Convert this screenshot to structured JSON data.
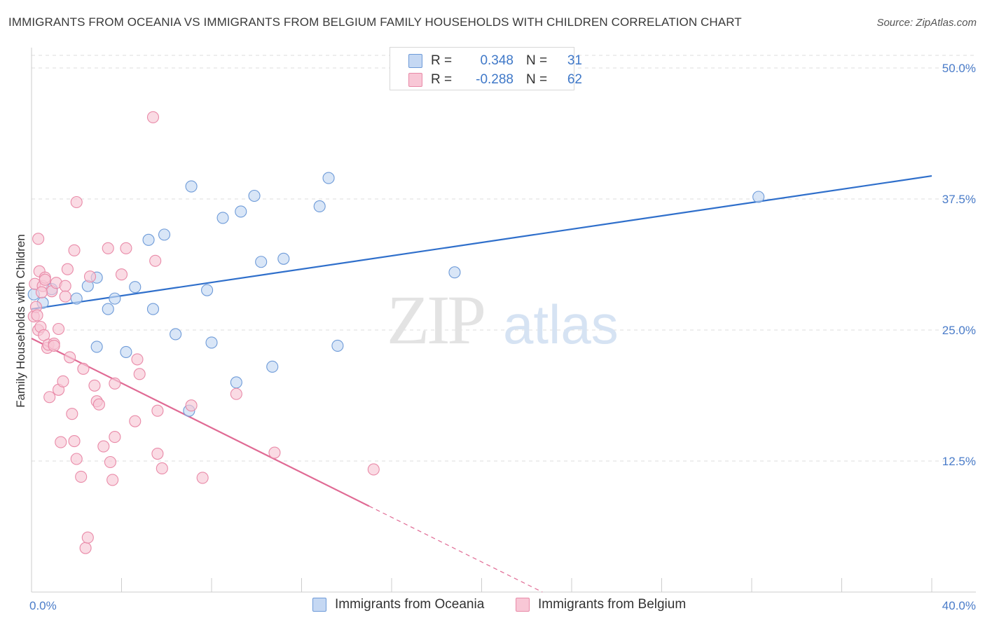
{
  "header": {
    "title": "IMMIGRANTS FROM OCEANIA VS IMMIGRANTS FROM BELGIUM FAMILY HOUSEHOLDS WITH CHILDREN CORRELATION CHART",
    "source": "Source: ZipAtlas.com"
  },
  "watermark": {
    "zip": "ZIP",
    "atlas": "atlas"
  },
  "colors": {
    "oceania_fill": "#c5d8f3",
    "oceania_stroke": "#6d9ad8",
    "oceania_line": "#2f6fcb",
    "belgium_fill": "#f8c7d6",
    "belgium_stroke": "#e98aa8",
    "belgium_line": "#e06a94",
    "tick_text": "#4a7cc9",
    "grid": "#dedede"
  },
  "legend": {
    "rows": [
      {
        "r_label": "R =",
        "r_value": "0.348",
        "n_label": "N =",
        "n_value": "31"
      },
      {
        "r_label": "R =",
        "r_value": "-0.288",
        "n_label": "N =",
        "n_value": "62"
      }
    ]
  },
  "chart_data": {
    "type": "scatter",
    "title": "IMMIGRANTS FROM OCEANIA VS IMMIGRANTS FROM BELGIUM FAMILY HOUSEHOLDS WITH CHILDREN CORRELATION CHART",
    "xlabel": "",
    "ylabel": "Family Households with Children",
    "xlim": [
      0,
      40
    ],
    "ylim": [
      0,
      50
    ],
    "x_tick_labels": [
      {
        "value": 0,
        "label": "0.0%"
      },
      {
        "value": 40,
        "label": "40.0%"
      }
    ],
    "y_tick_labels": [
      {
        "value": 12.5,
        "label": "12.5%"
      },
      {
        "value": 25,
        "label": "25.0%"
      },
      {
        "value": 37.5,
        "label": "37.5%"
      },
      {
        "value": 50,
        "label": "50.0%"
      }
    ],
    "grid": true,
    "series": [
      {
        "name": "Immigrants from Oceania",
        "points": [
          [
            0.1,
            28.4
          ],
          [
            0.5,
            27.6
          ],
          [
            0.9,
            28.9
          ],
          [
            2.0,
            28.0
          ],
          [
            2.5,
            29.2
          ],
          [
            2.9,
            30.0
          ],
          [
            2.9,
            23.4
          ],
          [
            3.4,
            27.0
          ],
          [
            3.7,
            28.0
          ],
          [
            4.2,
            22.9
          ],
          [
            4.6,
            29.1
          ],
          [
            5.2,
            33.6
          ],
          [
            5.4,
            27.0
          ],
          [
            5.9,
            34.1
          ],
          [
            6.4,
            24.6
          ],
          [
            7.0,
            17.3
          ],
          [
            7.1,
            38.7
          ],
          [
            7.8,
            28.8
          ],
          [
            8.0,
            23.8
          ],
          [
            8.5,
            35.7
          ],
          [
            9.1,
            20.0
          ],
          [
            9.3,
            36.3
          ],
          [
            9.9,
            37.8
          ],
          [
            10.2,
            31.5
          ],
          [
            10.7,
            21.5
          ],
          [
            11.2,
            31.8
          ],
          [
            12.8,
            36.8
          ],
          [
            13.2,
            39.5
          ],
          [
            13.6,
            23.5
          ],
          [
            18.8,
            30.5
          ],
          [
            32.3,
            37.7
          ]
        ],
        "trend": {
          "x": [
            0,
            40
          ],
          "y": [
            27.0,
            39.7
          ]
        }
      },
      {
        "name": "Immigrants from Belgium",
        "points": [
          [
            0.1,
            26.3
          ],
          [
            0.15,
            29.4
          ],
          [
            0.2,
            27.2
          ],
          [
            0.3,
            25.0
          ],
          [
            0.3,
            33.7
          ],
          [
            0.35,
            30.6
          ],
          [
            0.4,
            25.3
          ],
          [
            0.5,
            29.2
          ],
          [
            0.55,
            24.5
          ],
          [
            0.6,
            30.0
          ],
          [
            0.7,
            23.3
          ],
          [
            0.75,
            23.6
          ],
          [
            0.8,
            18.6
          ],
          [
            0.9,
            28.7
          ],
          [
            1.0,
            23.7
          ],
          [
            1.1,
            29.5
          ],
          [
            1.2,
            19.3
          ],
          [
            1.2,
            25.1
          ],
          [
            1.3,
            14.3
          ],
          [
            1.4,
            20.1
          ],
          [
            1.5,
            29.2
          ],
          [
            1.5,
            28.2
          ],
          [
            1.6,
            30.8
          ],
          [
            1.7,
            22.4
          ],
          [
            1.8,
            17.0
          ],
          [
            1.9,
            14.4
          ],
          [
            1.9,
            32.6
          ],
          [
            2.0,
            12.7
          ],
          [
            2.0,
            37.2
          ],
          [
            2.2,
            11.0
          ],
          [
            2.3,
            21.3
          ],
          [
            2.4,
            4.2
          ],
          [
            2.5,
            5.2
          ],
          [
            2.6,
            30.1
          ],
          [
            2.8,
            19.7
          ],
          [
            2.9,
            18.2
          ],
          [
            3.0,
            17.9
          ],
          [
            3.2,
            13.9
          ],
          [
            3.4,
            32.8
          ],
          [
            3.5,
            12.4
          ],
          [
            3.6,
            10.7
          ],
          [
            3.7,
            14.8
          ],
          [
            3.7,
            19.9
          ],
          [
            4.0,
            30.3
          ],
          [
            4.2,
            32.8
          ],
          [
            4.6,
            16.3
          ],
          [
            4.7,
            22.2
          ],
          [
            4.8,
            20.8
          ],
          [
            5.4,
            45.3
          ],
          [
            5.5,
            31.6
          ],
          [
            5.6,
            17.3
          ],
          [
            5.6,
            13.2
          ],
          [
            5.8,
            11.8
          ],
          [
            7.1,
            17.8
          ],
          [
            7.6,
            10.9
          ],
          [
            9.1,
            18.9
          ],
          [
            10.8,
            13.3
          ],
          [
            15.2,
            11.7
          ],
          [
            0.25,
            26.4
          ],
          [
            0.45,
            28.6
          ],
          [
            1.0,
            23.5
          ],
          [
            0.6,
            29.8
          ]
        ],
        "trend": {
          "x": [
            0,
            15
          ],
          "y": [
            24.2,
            8.2
          ]
        },
        "trend_dashed": {
          "x": [
            15,
            22.7
          ],
          "y": [
            8.2,
            0
          ]
        }
      }
    ],
    "legend_position": "bottom-center"
  }
}
